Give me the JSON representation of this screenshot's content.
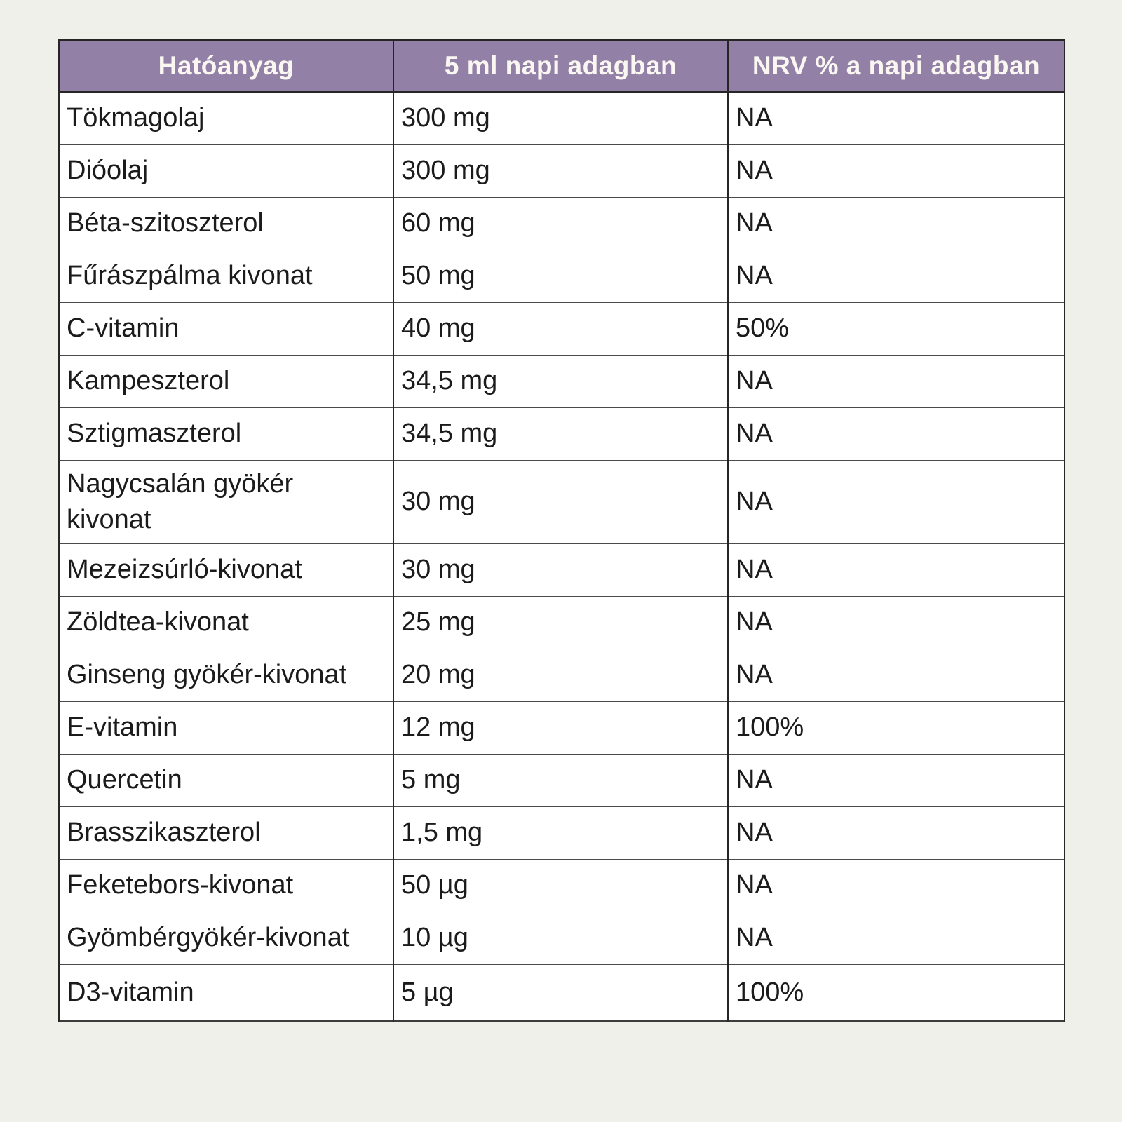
{
  "page": {
    "background_color": "#eef0e9"
  },
  "table": {
    "header": {
      "background_color": "#9280a6",
      "text_color": "#faf7f2",
      "columns": [
        "Hatóanyag",
        "5 ml napi adagban",
        "NRV % a napi adagban"
      ]
    },
    "rows": [
      {
        "name": "Tökmagolaj",
        "amount": "300 mg",
        "nrv": "NA"
      },
      {
        "name": "Dióolaj",
        "amount": "300 mg",
        "nrv": "NA"
      },
      {
        "name": "Béta-szitoszterol",
        "amount": "60 mg",
        "nrv": "NA"
      },
      {
        "name": "Fűrászpálma kivonat",
        "amount": "50 mg",
        "nrv": "NA"
      },
      {
        "name": "C-vitamin",
        "amount": "40 mg",
        "nrv": "50%"
      },
      {
        "name": "Kampeszterol",
        "amount": "34,5 mg",
        "nrv": "NA"
      },
      {
        "name": "Sztigmaszterol",
        "amount": "34,5 mg",
        "nrv": "NA"
      },
      {
        "name": "Nagycsalán gyökér kivonat",
        "amount": "30 mg",
        "nrv": "NA"
      },
      {
        "name": "Mezeizsúrló-kivonat",
        "amount": "30 mg",
        "nrv": "NA"
      },
      {
        "name": "Zöldtea-kivonat",
        "amount": "25 mg",
        "nrv": "NA"
      },
      {
        "name": "Ginseng gyökér-kivonat",
        "amount": "20 mg",
        "nrv": "NA"
      },
      {
        "name": "E-vitamin",
        "amount": "12 mg",
        "nrv": "100%"
      },
      {
        "name": "Quercetin",
        "amount": "5 mg",
        "nrv": "NA"
      },
      {
        "name": "Brasszikaszterol",
        "amount": "1,5 mg",
        "nrv": "NA"
      },
      {
        "name": "Feketebors-kivonat",
        "amount": "50 µg",
        "nrv": "NA"
      },
      {
        "name": "Gyömbérgyökér-kivonat",
        "amount": "10 µg",
        "nrv": "NA"
      },
      {
        "name": "D3-vitamin",
        "amount": "5 µg",
        "nrv": "100%"
      }
    ]
  }
}
